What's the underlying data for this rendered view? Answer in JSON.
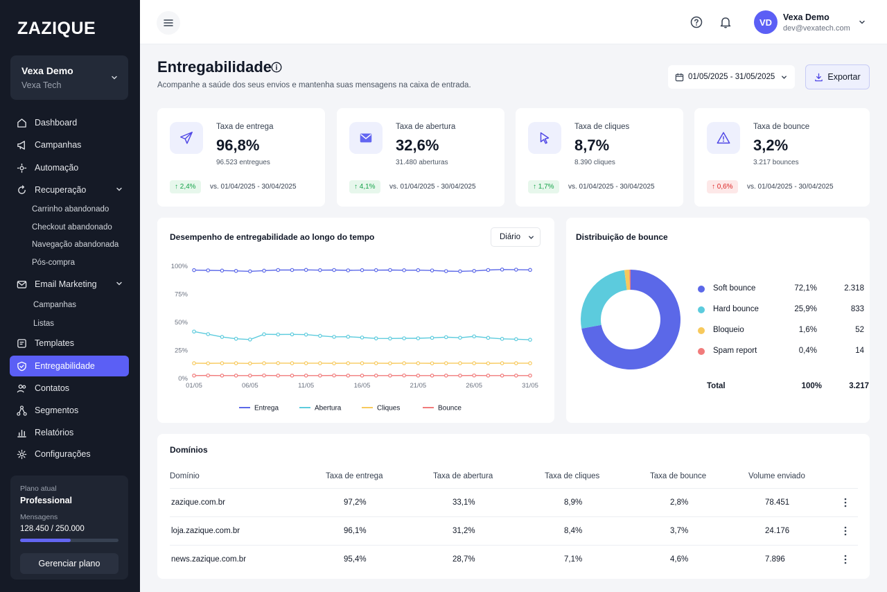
{
  "brand": {
    "logo": "ZAZIQUE"
  },
  "account": {
    "name": "Vexa Demo",
    "org": "Vexa Tech"
  },
  "nav": {
    "dashboard": "Dashboard",
    "campanhas": "Campanhas",
    "automacao": "Automação",
    "recuperacao": "Recuperação",
    "recuperacao_sub": [
      "Carrinho abandonado",
      "Checkout abandonado",
      "Navegação abandonada",
      "Pós-compra"
    ],
    "email_marketing": "Email Marketing",
    "email_sub": [
      "Campanhas",
      "Listas"
    ],
    "templates": "Templates",
    "entregabilidade": "Entregabilidade",
    "contatos": "Contatos",
    "segmentos": "Segmentos",
    "relatorios": "Relatórios",
    "configuracoes": "Configurações"
  },
  "plan": {
    "label": "Plano atual",
    "name": "Professional",
    "messages_label": "Mensagens",
    "messages_count": "128.450 / 250.000",
    "usage_fraction": 0.514,
    "manage_label": "Gerenciar plano"
  },
  "user": {
    "initials": "VD",
    "name": "Vexa Demo",
    "email": "dev@vexatech.com"
  },
  "header": {
    "title": "Entregabilidade",
    "subtitle": "Acompanhe a saúde dos seus envios e mantenha suas mensagens na caixa de entrada.",
    "date_range": "01/05/2025 - 31/05/2025",
    "export_label": "Exportar"
  },
  "kpis": [
    {
      "label": "Taxa de entrega",
      "value": "96,8%",
      "sub": "96.523 entregues",
      "delta": "2,4%",
      "trend": "up",
      "compare": "vs. 01/04/2025 - 30/04/2025",
      "icon": "send-icon"
    },
    {
      "label": "Taxa de abertura",
      "value": "32,6%",
      "sub": "31.480 aberturas",
      "delta": "4,1%",
      "trend": "up",
      "compare": "vs. 01/04/2025 - 30/04/2025",
      "icon": "mail-icon"
    },
    {
      "label": "Taxa de cliques",
      "value": "8,7%",
      "sub": "8.390 cliques",
      "delta": "1,7%",
      "trend": "up",
      "compare": "vs. 01/04/2025 - 30/04/2025",
      "icon": "cursor-icon"
    },
    {
      "label": "Taxa de bounce",
      "value": "3,2%",
      "sub": "3.217 bounces",
      "delta": "0,6%",
      "trend": "up-bad",
      "compare": "vs. 01/04/2025 - 30/04/2025",
      "icon": "warning-icon"
    }
  ],
  "performance": {
    "title": "Desempenho de entregabilidade ao longo do tempo",
    "period": "Diário"
  },
  "chart_data": {
    "type": "line",
    "x_ticks": [
      "01/05",
      "06/05",
      "11/05",
      "16/05",
      "21/05",
      "26/05",
      "31/05"
    ],
    "y_ticks": [
      "100%",
      "75%",
      "50%",
      "25%",
      "0%"
    ],
    "ylim": [
      0,
      100
    ],
    "n_points": 25,
    "series": [
      {
        "name": "Entrega",
        "color": "#5b68e8",
        "values": [
          96.5,
          96.3,
          96.1,
          95.8,
          95.4,
          96.0,
          96.6,
          96.6,
          96.7,
          96.5,
          96.6,
          96.3,
          96.5,
          96.5,
          96.6,
          96.4,
          96.5,
          96.2,
          95.6,
          95.4,
          95.8,
          96.6,
          97.0,
          96.9,
          96.7
        ]
      },
      {
        "name": "Abertura",
        "color": "#5ccbdd",
        "values": [
          41.8,
          39.5,
          37.0,
          35.4,
          34.7,
          39.4,
          39.2,
          39.3,
          39.1,
          38.0,
          37.1,
          37.2,
          36.5,
          35.7,
          35.6,
          35.8,
          35.8,
          36.2,
          36.8,
          36.3,
          37.5,
          36.2,
          35.3,
          35.0,
          34.5
        ]
      },
      {
        "name": "Cliques",
        "color": "#f7c95c",
        "values": [
          13.6,
          13.5,
          13.6,
          13.6,
          13.4,
          13.6,
          13.7,
          13.6,
          13.6,
          13.6,
          13.5,
          13.6,
          13.6,
          13.6,
          13.5,
          13.6,
          13.6,
          13.5,
          13.6,
          13.6,
          13.6,
          13.5,
          13.6,
          13.6,
          13.6
        ]
      },
      {
        "name": "Bounce",
        "color": "#f17b7b",
        "values": [
          2.6,
          2.7,
          2.6,
          2.6,
          2.6,
          2.7,
          2.6,
          2.6,
          2.6,
          2.6,
          2.7,
          2.6,
          2.6,
          2.6,
          2.6,
          2.7,
          2.6,
          2.6,
          2.6,
          2.6,
          2.7,
          2.6,
          2.6,
          2.6,
          2.6
        ]
      }
    ]
  },
  "bounce": {
    "title": "Distribuição de bounce",
    "rows": [
      {
        "name": "Soft bounce",
        "pct": "72,1%",
        "count": "2.318",
        "value": 72.1,
        "color": "#5b68e8"
      },
      {
        "name": "Hard bounce",
        "pct": "25,9%",
        "count": "833",
        "value": 25.9,
        "color": "#5ccbdd"
      },
      {
        "name": "Bloqueio",
        "pct": "1,6%",
        "count": "52",
        "value": 1.6,
        "color": "#f7c95c"
      },
      {
        "name": "Spam report",
        "pct": "0,4%",
        "count": "14",
        "value": 0.4,
        "color": "#f17b7b"
      }
    ],
    "total_label": "Total",
    "total_pct": "100%",
    "total_count": "3.217"
  },
  "domains": {
    "title": "Domínios",
    "columns": [
      "Domínio",
      "Taxa de entrega",
      "Taxa de abertura",
      "Taxa de cliques",
      "Taxa de bounce",
      "Volume enviado"
    ],
    "rows": [
      [
        "zazique.com.br",
        "97,2%",
        "33,1%",
        "8,9%",
        "2,8%",
        "78.451"
      ],
      [
        "loja.zazique.com.br",
        "96,1%",
        "31,2%",
        "8,4%",
        "3,7%",
        "24.176"
      ],
      [
        "news.zazique.com.br",
        "95,4%",
        "28,7%",
        "7,1%",
        "4,6%",
        "7.896"
      ]
    ]
  }
}
